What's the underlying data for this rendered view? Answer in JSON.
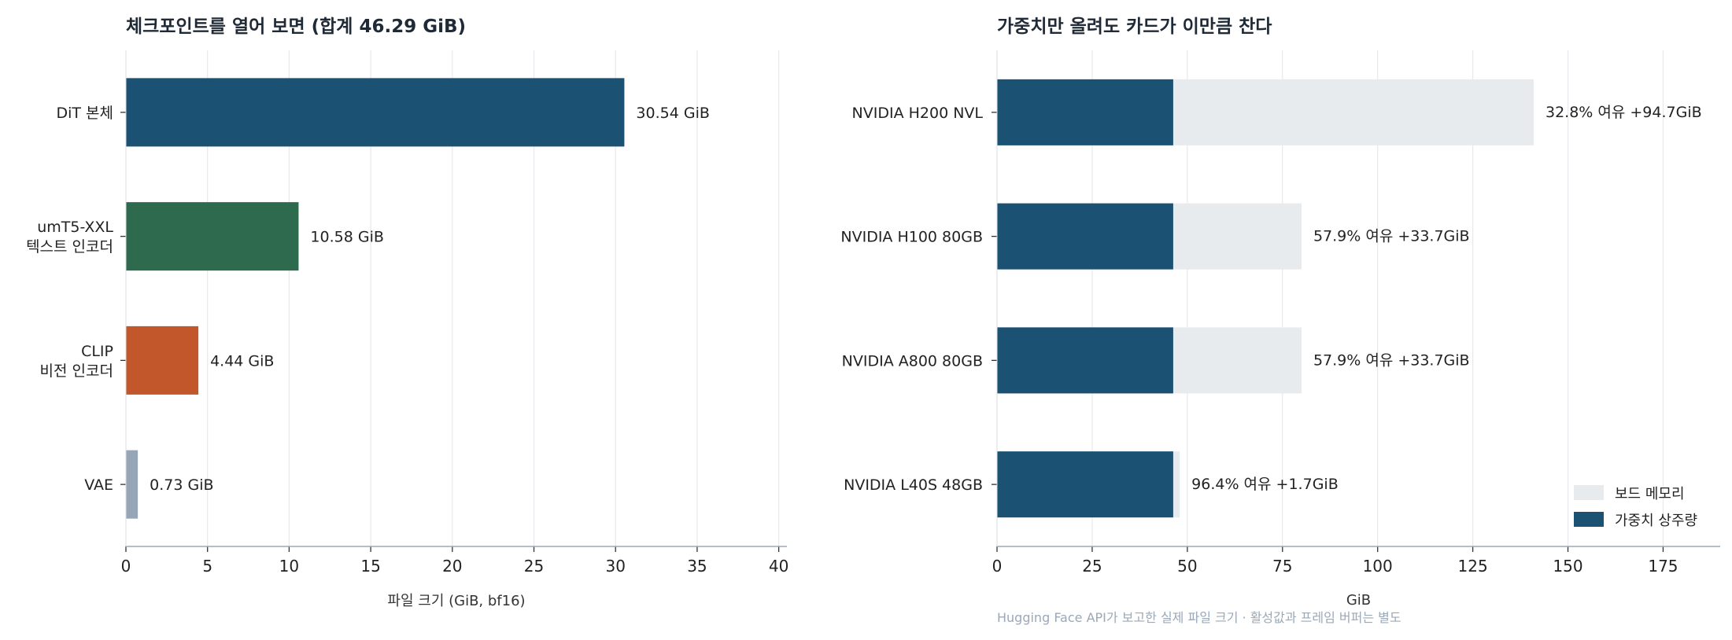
{
  "charts": {
    "left_title": "체크포인트를 열어 보면 (합계 46.29 GiB)",
    "right_title": "가중치만 올려도 카드가 이만큼 찬다",
    "footnote": "Hugging Face API가 보고한 실제 파일 크기 · 활성값과 프레임 버퍼는 별도"
  },
  "chart_data": [
    {
      "type": "bar",
      "orientation": "horizontal",
      "title": "체크포인트를 열어 보면 (합계 46.29 GiB)",
      "xlabel": "파일 크기 (GiB, bf16)",
      "ylabel": "",
      "xlim": [
        0,
        40.5
      ],
      "xticks": [
        0,
        5,
        10,
        15,
        20,
        25,
        30,
        35,
        40
      ],
      "grid": "vertical",
      "categories": [
        {
          "lines": [
            "DiT 본체"
          ],
          "value": 30.54,
          "label": "30.54 GiB",
          "color": "#1b5172"
        },
        {
          "lines": [
            "umT5-XXL",
            "텍스트 인코더"
          ],
          "value": 10.58,
          "label": "10.58 GiB",
          "color": "#2e6b4e"
        },
        {
          "lines": [
            "CLIP",
            "비전 인코더"
          ],
          "value": 4.44,
          "label": "4.44 GiB",
          "color": "#c2572c"
        },
        {
          "lines": [
            "VAE"
          ],
          "value": 0.73,
          "label": "0.73 GiB",
          "color": "#97a6b6"
        }
      ]
    },
    {
      "type": "bar",
      "orientation": "horizontal",
      "stacked": false,
      "title": "가중치만 올려도 카드가 이만큼 찬다",
      "xlabel": "GiB",
      "ylabel": "",
      "xlim": [
        0,
        190
      ],
      "xticks": [
        0,
        25,
        50,
        75,
        100,
        125,
        150,
        175
      ],
      "grid": "vertical",
      "legend_position": "bottom-right",
      "weights_value": 46.29,
      "series": [
        {
          "name": "보드 메모리",
          "color": "#e7ebee"
        },
        {
          "name": "가중치 상주량",
          "color": "#1b5172"
        }
      ],
      "categories": [
        {
          "name": "NVIDIA H200 NVL",
          "board": 141,
          "label": "32.8%  여유 +94.7GiB"
        },
        {
          "name": "NVIDIA H100 80GB",
          "board": 80,
          "label": "57.9%  여유 +33.7GiB"
        },
        {
          "name": "NVIDIA A800 80GB",
          "board": 80,
          "label": "57.9%  여유 +33.7GiB"
        },
        {
          "name": "NVIDIA L40S 48GB",
          "board": 48,
          "label": "96.4%  여유 +1.7GiB"
        }
      ]
    }
  ]
}
